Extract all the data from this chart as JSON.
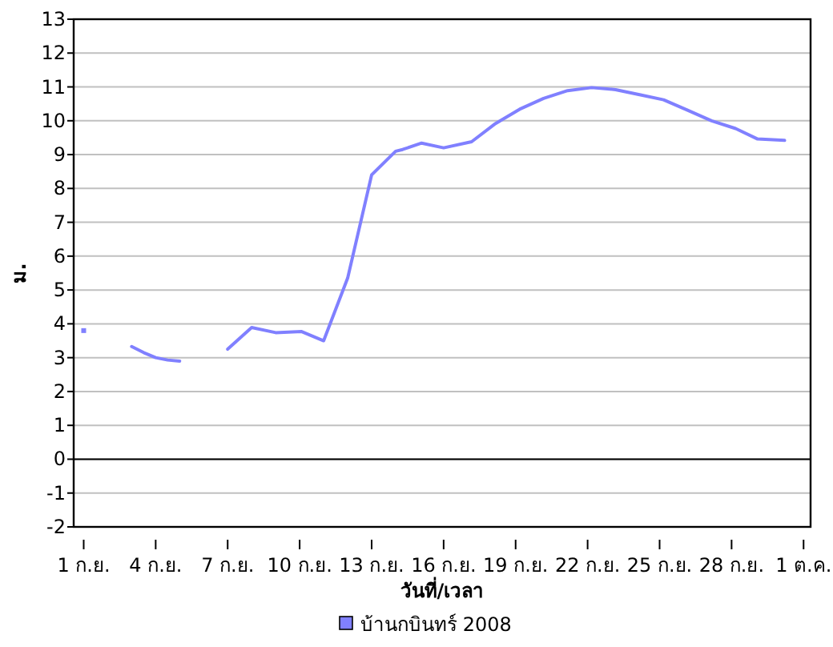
{
  "chart_data": {
    "type": "line",
    "xlabel": "วันที่/เวลา",
    "ylabel": "ม.",
    "x": [
      "2008-09-01",
      "2008-09-02",
      "2008-09-03",
      "2008-09-03T12:00",
      "2008-09-04",
      "2008-09-04T12:00",
      "2008-09-05",
      "2008-09-06",
      "2008-09-07",
      "2008-09-08",
      "2008-09-09",
      "2008-09-10T02:00",
      "2008-09-11",
      "2008-09-12",
      "2008-09-13",
      "2008-09-14",
      "2008-09-14T07:00",
      "2008-09-15T02:00",
      "2008-09-16",
      "2008-09-17T04:00",
      "2008-09-18T04:00",
      "2008-09-19T04:00",
      "2008-09-20T04:00",
      "2008-09-21T04:00",
      "2008-09-22T04:00",
      "2008-09-23T04:00",
      "2008-09-24T04:00",
      "2008-09-25T04:00",
      "2008-09-26T04:00",
      "2008-09-27T04:00",
      "2008-09-28T04:00",
      "2008-09-29T02:00",
      "2008-09-30T05:00"
    ],
    "series": [
      {
        "name": "บ้านกบินทร์ 2008",
        "color": "#8080ff",
        "values": [
          3.8,
          null,
          3.33,
          3.15,
          3.0,
          2.93,
          2.9,
          null,
          3.25,
          3.89,
          3.74,
          3.77,
          3.5,
          5.35,
          8.4,
          9.1,
          9.15,
          9.34,
          9.2,
          9.38,
          9.92,
          10.34,
          10.66,
          10.89,
          10.98,
          10.92,
          10.77,
          10.62,
          10.31,
          10.0,
          9.77,
          9.46,
          9.42
        ]
      }
    ],
    "xlim": [
      "2008-08-31T14:00",
      "2008-10-01T07:00"
    ],
    "xticks": [
      {
        "value": "2008-09-01",
        "label": "1 ก.ย."
      },
      {
        "value": "2008-09-04",
        "label": "4 ก.ย."
      },
      {
        "value": "2008-09-07",
        "label": "7 ก.ย."
      },
      {
        "value": "2008-09-10",
        "label": "10 ก.ย."
      },
      {
        "value": "2008-09-13",
        "label": "13 ก.ย."
      },
      {
        "value": "2008-09-16",
        "label": "16 ก.ย."
      },
      {
        "value": "2008-09-19",
        "label": "19 ก.ย."
      },
      {
        "value": "2008-09-22",
        "label": "22 ก.ย."
      },
      {
        "value": "2008-09-25",
        "label": "25 ก.ย."
      },
      {
        "value": "2008-09-28",
        "label": "28 ก.ย."
      },
      {
        "value": "2008-10-01",
        "label": "1 ต.ค."
      }
    ],
    "ylim": [
      -2,
      13
    ],
    "yticks": [
      -2,
      -1,
      0,
      1,
      2,
      3,
      4,
      5,
      6,
      7,
      8,
      9,
      10,
      11,
      12,
      13
    ],
    "ref_lines": [
      {
        "axis": "y",
        "value": 0,
        "color": "#000000"
      }
    ],
    "grid": "y",
    "legend": "bottom",
    "marker": "none",
    "line_style": "solid"
  }
}
